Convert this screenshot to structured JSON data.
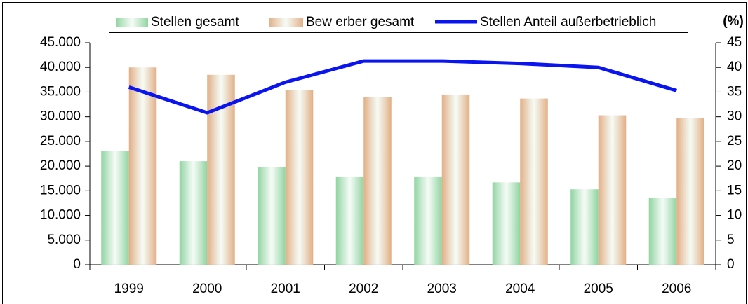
{
  "chart_data": {
    "type": "bar",
    "categories": [
      "1999",
      "2000",
      "2001",
      "2002",
      "2003",
      "2004",
      "2005",
      "2006"
    ],
    "series": [
      {
        "name": "Stellen gesamt",
        "color": "#8fd4a0",
        "values": [
          23000,
          21000,
          19800,
          17900,
          17900,
          16700,
          15300,
          13600
        ]
      },
      {
        "name": "Bew erber gesamt",
        "color": "#e2ae84",
        "values": [
          40000,
          38500,
          35400,
          34000,
          34500,
          33700,
          30300,
          29700
        ]
      },
      {
        "name": "Stellen Anteil außerbetrieblich",
        "type": "line",
        "axis": "y2",
        "color": "#0a14f0",
        "values": [
          36,
          30.8,
          37,
          41.3,
          41.3,
          40.8,
          40,
          35.3
        ]
      }
    ],
    "ylim": [
      0,
      45000
    ],
    "yticks": [
      0,
      {
        "value": 5000,
        "label": "5.000"
      },
      {
        "value": 10000,
        "label": "10.000"
      },
      {
        "value": 15000,
        "label": "15.000"
      },
      {
        "value": 20000,
        "label": "20.000"
      },
      {
        "value": 25000,
        "label": "25.000"
      },
      {
        "value": 30000,
        "label": "30.000"
      },
      {
        "value": 35000,
        "label": "35.000"
      },
      {
        "value": 40000,
        "label": "40.000"
      },
      {
        "value": 45000,
        "label": "45.000"
      }
    ],
    "y2lim": [
      0,
      45
    ],
    "y2ticks": [
      0,
      5,
      10,
      15,
      20,
      25,
      30,
      35,
      40,
      45
    ],
    "y2label": "(%)",
    "grid": false
  }
}
